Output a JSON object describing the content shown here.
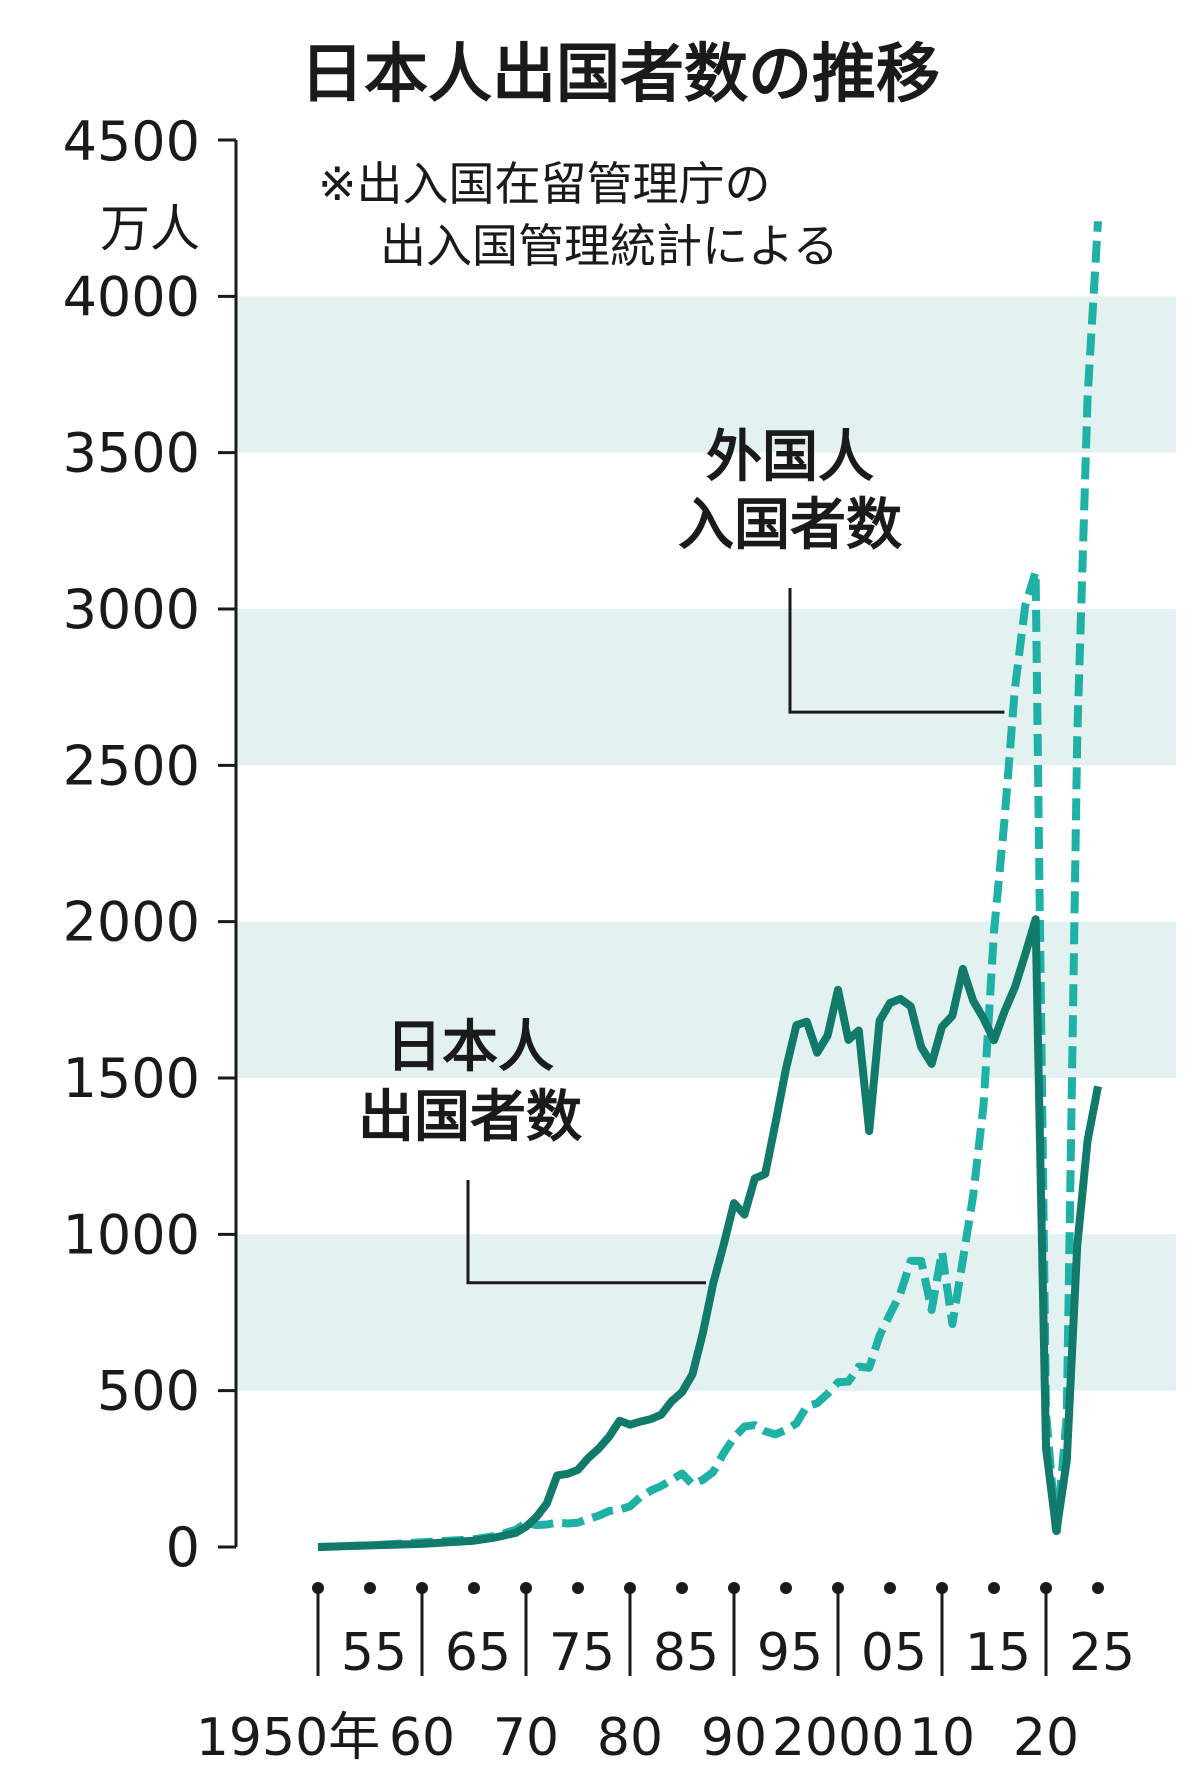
{
  "chart_data": {
    "type": "line",
    "title": "日本人出国者数の推移",
    "note": [
      "※出入国在留管理庁の",
      "出入国管理統計による"
    ],
    "y_unit": "万人",
    "ylim": [
      0,
      4500
    ],
    "yticks": [
      "0",
      "500",
      "1000",
      "1500",
      "2000",
      "2500",
      "3000",
      "3500",
      "4000",
      "4500"
    ],
    "xlim": [
      1950,
      2025
    ],
    "xticks_upper": [
      "55",
      "65",
      "75",
      "85",
      "95",
      "05",
      "15",
      "25"
    ],
    "xticks_lower": [
      "1950年",
      "60",
      "70",
      "80",
      "90",
      "2000",
      "10",
      "20"
    ],
    "background_bands": "alternating",
    "colors": {
      "japanese": "#127a6a",
      "foreign": "#1fb0a6",
      "band": "#e3f2f1",
      "axis": "#1a1a1a"
    },
    "series": [
      {
        "name": "日本人出国者数",
        "label_lines": [
          "日本人",
          "出国者数"
        ],
        "style": "solid",
        "points": [
          [
            1950,
            0
          ],
          [
            1955,
            5
          ],
          [
            1960,
            10
          ],
          [
            1965,
            20
          ],
          [
            1967,
            30
          ],
          [
            1969,
            45
          ],
          [
            1970,
            65
          ],
          [
            1971,
            96
          ],
          [
            1972,
            139
          ],
          [
            1973,
            229
          ],
          [
            1974,
            234
          ],
          [
            1975,
            247
          ],
          [
            1976,
            285
          ],
          [
            1977,
            315
          ],
          [
            1978,
            353
          ],
          [
            1979,
            404
          ],
          [
            1980,
            391
          ],
          [
            1981,
            401
          ],
          [
            1982,
            409
          ],
          [
            1983,
            423
          ],
          [
            1984,
            466
          ],
          [
            1985,
            495
          ],
          [
            1986,
            552
          ],
          [
            1987,
            683
          ],
          [
            1988,
            843
          ],
          [
            1989,
            966
          ],
          [
            1990,
            1100
          ],
          [
            1991,
            1063
          ],
          [
            1992,
            1179
          ],
          [
            1993,
            1193
          ],
          [
            1994,
            1358
          ],
          [
            1995,
            1530
          ],
          [
            1996,
            1669
          ],
          [
            1997,
            1680
          ],
          [
            1998,
            1581
          ],
          [
            1999,
            1636
          ],
          [
            2000,
            1782
          ],
          [
            2001,
            1622
          ],
          [
            2002,
            1652
          ],
          [
            2003,
            1330
          ],
          [
            2004,
            1683
          ],
          [
            2005,
            1740
          ],
          [
            2006,
            1753
          ],
          [
            2007,
            1729
          ],
          [
            2008,
            1599
          ],
          [
            2009,
            1545
          ],
          [
            2010,
            1664
          ],
          [
            2011,
            1699
          ],
          [
            2012,
            1849
          ],
          [
            2013,
            1747
          ],
          [
            2014,
            1690
          ],
          [
            2015,
            1621
          ],
          [
            2016,
            1712
          ],
          [
            2017,
            1789
          ],
          [
            2018,
            1895
          ],
          [
            2019,
            2008
          ],
          [
            2020,
            317
          ],
          [
            2021,
            51
          ],
          [
            2022,
            277
          ],
          [
            2023,
            962
          ],
          [
            2024,
            1300
          ],
          [
            2025,
            1473
          ]
        ]
      },
      {
        "name": "外国人入国者数",
        "label_lines": [
          "外国人",
          "入国者数"
        ],
        "style": "dashed",
        "points": [
          [
            1950,
            0
          ],
          [
            1955,
            5
          ],
          [
            1960,
            15
          ],
          [
            1965,
            25
          ],
          [
            1967,
            35
          ],
          [
            1969,
            55
          ],
          [
            1970,
            77
          ],
          [
            1971,
            70
          ],
          [
            1972,
            72
          ],
          [
            1973,
            78
          ],
          [
            1974,
            75
          ],
          [
            1975,
            78
          ],
          [
            1976,
            90
          ],
          [
            1977,
            100
          ],
          [
            1978,
            115
          ],
          [
            1979,
            120
          ],
          [
            1980,
            130
          ],
          [
            1981,
            160
          ],
          [
            1982,
            180
          ],
          [
            1983,
            195
          ],
          [
            1984,
            215
          ],
          [
            1985,
            235
          ],
          [
            1986,
            200
          ],
          [
            1987,
            215
          ],
          [
            1988,
            240
          ],
          [
            1989,
            300
          ],
          [
            1990,
            350
          ],
          [
            1991,
            385
          ],
          [
            1992,
            390
          ],
          [
            1993,
            370
          ],
          [
            1994,
            360
          ],
          [
            1995,
            375
          ],
          [
            1996,
            395
          ],
          [
            1997,
            450
          ],
          [
            1998,
            460
          ],
          [
            1999,
            490
          ],
          [
            2000,
            527
          ],
          [
            2001,
            529
          ],
          [
            2002,
            577
          ],
          [
            2003,
            573
          ],
          [
            2004,
            676
          ],
          [
            2005,
            745
          ],
          [
            2006,
            811
          ],
          [
            2007,
            915
          ],
          [
            2008,
            915
          ],
          [
            2009,
            758
          ],
          [
            2010,
            944
          ],
          [
            2011,
            713
          ],
          [
            2012,
            917
          ],
          [
            2013,
            1125
          ],
          [
            2014,
            1415
          ],
          [
            2015,
            1969
          ],
          [
            2016,
            2322
          ],
          [
            2017,
            2743
          ],
          [
            2018,
            3010
          ],
          [
            2019,
            3119
          ],
          [
            2020,
            431
          ],
          [
            2021,
            35
          ],
          [
            2022,
            420
          ],
          [
            2023,
            2583
          ],
          [
            2024,
            3678
          ],
          [
            2025,
            4240
          ]
        ]
      }
    ]
  }
}
